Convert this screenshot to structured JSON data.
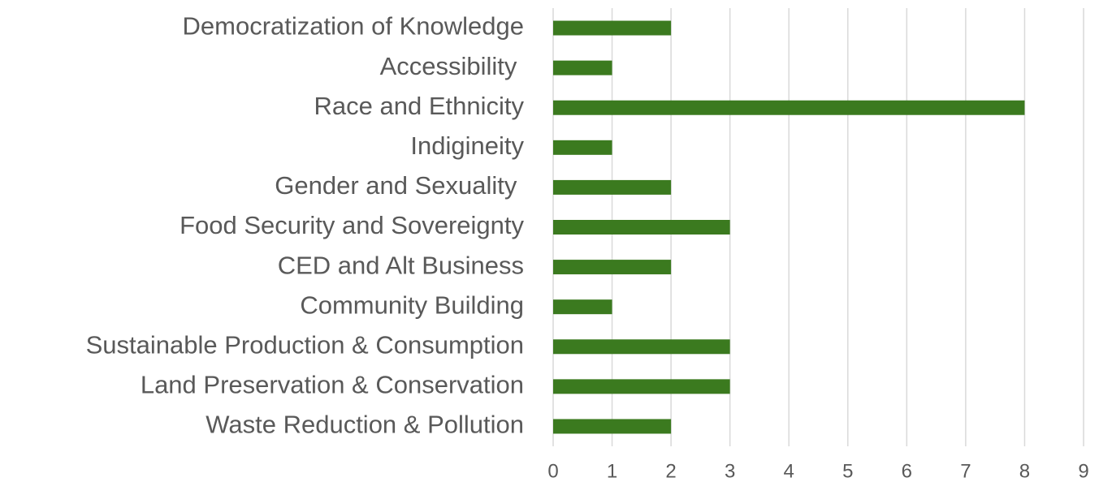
{
  "chart_data": {
    "type": "hbar",
    "categories": [
      "Democratization of Knowledge",
      "Accessibility ",
      "Race and Ethnicity",
      "Indigineity",
      "Gender and Sexuality ",
      "Food Security and Sovereignty",
      "CED and Alt Business",
      "Community Building",
      "Sustainable Production & Consumption",
      "Land Preservation & Conservation",
      "Waste Reduction & Pollution"
    ],
    "values": [
      2,
      1,
      8,
      1,
      2,
      3,
      2,
      1,
      3,
      3,
      2
    ],
    "color": "#3b7a1f",
    "xlim": [
      0,
      9
    ],
    "xticks": [
      0,
      1,
      2,
      3,
      4,
      5,
      6,
      7,
      8,
      9
    ],
    "grid": true
  }
}
